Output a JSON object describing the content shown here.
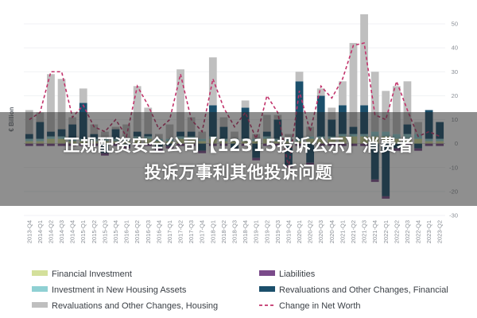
{
  "chart_data": {
    "type": "bar",
    "ylabel": "€ Billion",
    "ylim": [
      -30,
      50
    ],
    "yticks": [
      50,
      40,
      30,
      20,
      10,
      0,
      -10,
      -20,
      -30
    ],
    "categories": [
      "2013-Q4",
      "2014-Q1",
      "2014-Q2",
      "2014-Q3",
      "2014-Q4",
      "2015-Q1",
      "2015-Q2",
      "2015-Q3",
      "2015-Q4",
      "2016-Q1",
      "2016-Q2",
      "2016-Q3",
      "2016-Q4",
      "2017-Q1",
      "2017-Q2",
      "2017-Q3",
      "2017-Q4",
      "2018-Q1",
      "2018-Q2",
      "2018-Q3",
      "2018-Q4",
      "2019-Q1",
      "2019-Q2",
      "2019-Q3",
      "2019-Q4",
      "2020-Q1",
      "2020-Q2",
      "2020-Q3",
      "2020-Q4",
      "2021-Q1",
      "2021-Q2",
      "2021-Q3",
      "2021-Q4",
      "2022-Q1",
      "2022-Q2",
      "2022-Q3",
      "2022-Q4",
      "2023-Q1",
      "2023-Q2"
    ],
    "series": [
      {
        "name": "Revaluations and Other Changes, Housing",
        "color": "#bfbfbf",
        "stack": "top",
        "values": [
          10,
          4,
          24,
          21,
          3,
          6,
          4,
          3,
          1,
          6,
          19,
          11,
          2,
          6,
          26,
          6,
          3,
          20,
          4,
          3,
          3,
          2,
          7,
          2,
          2,
          4,
          4,
          3,
          5,
          10,
          35,
          38,
          25,
          17,
          20,
          18,
          5,
          0,
          0
        ]
      },
      {
        "name": "Investment in New Housing Assets",
        "color": "#8fd0d3",
        "stack": "top",
        "values": [
          1,
          1,
          1,
          1,
          1,
          1,
          1,
          1,
          1,
          1,
          1,
          1,
          1,
          1,
          1,
          1,
          1,
          1,
          1,
          1,
          1,
          1,
          1,
          1,
          1,
          1,
          1,
          1,
          1,
          1,
          1,
          1,
          2,
          2,
          2,
          2,
          2,
          1,
          1
        ]
      },
      {
        "name": "Financial Investment",
        "color": "#d4e09b",
        "stack": "top",
        "values": [
          1,
          1,
          2,
          2,
          1,
          1,
          1,
          1,
          1,
          1,
          2,
          2,
          1,
          1,
          2,
          2,
          1,
          2,
          1,
          1,
          1,
          1,
          2,
          1,
          1,
          1,
          2,
          2,
          2,
          3,
          3,
          3,
          3,
          3,
          2,
          2,
          2,
          1,
          1
        ]
      },
      {
        "name": "Revaluations and Other Changes, Financial",
        "color": "#1b4f6b",
        "stack": "mixed",
        "values": [
          2,
          7,
          2,
          3,
          6,
          15,
          2,
          -4,
          4,
          -1,
          2,
          1,
          -2,
          -1,
          2,
          2,
          -3,
          13,
          5,
          -2,
          13,
          -6,
          2,
          8,
          -9,
          24,
          -8,
          17,
          7,
          12,
          3,
          12,
          -15,
          -22,
          -2,
          4,
          -2,
          12,
          7
        ]
      },
      {
        "name": "Liabilities",
        "color": "#7a4a8a",
        "stack": "bottom",
        "values": [
          -1,
          -1,
          -1,
          -1,
          -1,
          -1,
          -1,
          -1,
          -1,
          -1,
          -1,
          -1,
          -1,
          -1,
          -1,
          -1,
          -1,
          -1,
          -1,
          -1,
          -1,
          -1,
          -1,
          -1,
          -1,
          -1,
          -1,
          -1,
          -1,
          -1,
          -1,
          -1,
          -1,
          -1,
          -1,
          -1,
          -1,
          -1,
          -1
        ]
      },
      {
        "name": "Change in Net Worth",
        "color": "#c2336b",
        "type": "line",
        "values": [
          10,
          13,
          30,
          30,
          11,
          16,
          7,
          5,
          10,
          3,
          24,
          16,
          6,
          10,
          29,
          10,
          5,
          27,
          15,
          7,
          13,
          2,
          20,
          13,
          -10,
          22,
          5,
          24,
          19,
          27,
          41,
          42,
          12,
          10,
          26,
          14,
          3,
          5,
          3
        ]
      }
    ],
    "legend": {
      "placement": "bottom",
      "columns": 2
    }
  },
  "overlay": {
    "line1": "正规配资安全公司【12315投诉公示】消费者",
    "line2": "投诉万事利其他投诉问题"
  }
}
